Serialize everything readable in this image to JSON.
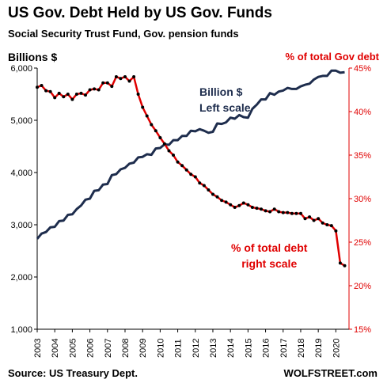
{
  "chart_data": {
    "type": "line",
    "title": "US Gov. Debt Held by US Gov. Funds",
    "subtitle": "Social Security Trust Fund, Gov. pension funds",
    "ylabel": "Billions $",
    "y2label": "% of total Gov debt",
    "ylim": [
      1000,
      6000
    ],
    "y2lim": [
      15,
      45
    ],
    "yticks": [
      "1,000",
      "2,000",
      "3,000",
      "4,000",
      "5,000",
      "6,000"
    ],
    "y2ticks": [
      "15%",
      "20%",
      "25%",
      "30%",
      "35%",
      "40%",
      "45%"
    ],
    "xticks": [
      "2003",
      "2004",
      "2005",
      "2006",
      "2007",
      "2008",
      "2009",
      "2010",
      "2011",
      "2012",
      "2013",
      "2014",
      "2015",
      "2016",
      "2017",
      "2018",
      "2019",
      "2020"
    ],
    "grid": false,
    "annotations": [
      {
        "lines": [
          "Billion $",
          "Left scale"
        ],
        "series": "Billion $"
      },
      {
        "lines": [
          "% of total debt",
          "right scale"
        ],
        "series": "% of total debt"
      }
    ],
    "series": [
      {
        "name": "Billion $",
        "axis": "left",
        "color": "#1e2d4d",
        "x": [
          2003.0,
          2003.25,
          2003.5,
          2003.75,
          2004.0,
          2004.25,
          2004.5,
          2004.75,
          2005.0,
          2005.25,
          2005.5,
          2005.75,
          2006.0,
          2006.25,
          2006.5,
          2006.75,
          2007.0,
          2007.25,
          2007.5,
          2007.75,
          2008.0,
          2008.25,
          2008.5,
          2008.75,
          2009.0,
          2009.25,
          2009.5,
          2009.75,
          2010.0,
          2010.25,
          2010.5,
          2010.75,
          2011.0,
          2011.25,
          2011.5,
          2011.75,
          2012.0,
          2012.25,
          2012.5,
          2012.75,
          2013.0,
          2013.25,
          2013.5,
          2013.75,
          2014.0,
          2014.25,
          2014.5,
          2014.75,
          2015.0,
          2015.25,
          2015.5,
          2015.75,
          2016.0,
          2016.25,
          2016.5,
          2016.75,
          2017.0,
          2017.25,
          2017.5,
          2017.75,
          2018.0,
          2018.25,
          2018.5,
          2018.75,
          2019.0,
          2019.25,
          2019.5,
          2019.75,
          2020.0,
          2020.25,
          2020.5
        ],
        "values": [
          2730,
          2830,
          2860,
          2950,
          2960,
          3070,
          3080,
          3190,
          3200,
          3300,
          3370,
          3480,
          3500,
          3650,
          3660,
          3770,
          3780,
          3950,
          3970,
          4060,
          4090,
          4170,
          4190,
          4290,
          4300,
          4350,
          4340,
          4460,
          4470,
          4540,
          4530,
          4620,
          4620,
          4700,
          4700,
          4800,
          4790,
          4830,
          4800,
          4760,
          4780,
          4940,
          4930,
          4960,
          5050,
          5030,
          5100,
          5060,
          5050,
          5220,
          5300,
          5400,
          5400,
          5520,
          5490,
          5550,
          5570,
          5620,
          5600,
          5600,
          5650,
          5680,
          5700,
          5780,
          5830,
          5850,
          5850,
          5950,
          5950,
          5910,
          5920
        ]
      },
      {
        "name": "% of total debt",
        "axis": "right",
        "color": "#e00000",
        "x": [
          2003.0,
          2003.25,
          2003.5,
          2003.75,
          2004.0,
          2004.25,
          2004.5,
          2004.75,
          2005.0,
          2005.25,
          2005.5,
          2005.75,
          2006.0,
          2006.25,
          2006.5,
          2006.75,
          2007.0,
          2007.25,
          2007.5,
          2007.75,
          2008.0,
          2008.25,
          2008.5,
          2008.75,
          2009.0,
          2009.25,
          2009.5,
          2009.75,
          2010.0,
          2010.25,
          2010.5,
          2010.75,
          2011.0,
          2011.25,
          2011.5,
          2011.75,
          2012.0,
          2012.25,
          2012.5,
          2012.75,
          2013.0,
          2013.25,
          2013.5,
          2013.75,
          2014.0,
          2014.25,
          2014.5,
          2014.75,
          2015.0,
          2015.25,
          2015.5,
          2015.75,
          2016.0,
          2016.25,
          2016.5,
          2016.75,
          2017.0,
          2017.25,
          2017.5,
          2017.75,
          2018.0,
          2018.25,
          2018.5,
          2018.75,
          2019.0,
          2019.25,
          2019.5,
          2019.75,
          2020.0,
          2020.25,
          2020.5
        ],
        "values": [
          42.8,
          43.0,
          42.4,
          42.3,
          41.6,
          42.1,
          41.7,
          42.0,
          41.4,
          42.0,
          42.1,
          41.9,
          42.5,
          42.6,
          42.5,
          43.3,
          43.3,
          42.9,
          44.0,
          43.8,
          44.0,
          43.5,
          44.0,
          42.0,
          40.5,
          39.5,
          38.5,
          37.8,
          37.0,
          36.3,
          35.5,
          35.0,
          34.2,
          33.8,
          33.3,
          32.8,
          32.5,
          31.8,
          31.5,
          31.0,
          30.5,
          30.2,
          29.8,
          29.6,
          29.3,
          29.0,
          29.2,
          29.5,
          29.3,
          29.0,
          28.9,
          28.8,
          28.6,
          28.5,
          28.8,
          28.5,
          28.4,
          28.4,
          28.3,
          28.3,
          28.3,
          27.7,
          27.9,
          27.5,
          27.7,
          27.2,
          27.0,
          26.9,
          26.3,
          22.6,
          22.3
        ]
      }
    ]
  },
  "footer": {
    "source": "Source: US Treasury Dept.",
    "brand": "WOLFSTREET.com"
  }
}
